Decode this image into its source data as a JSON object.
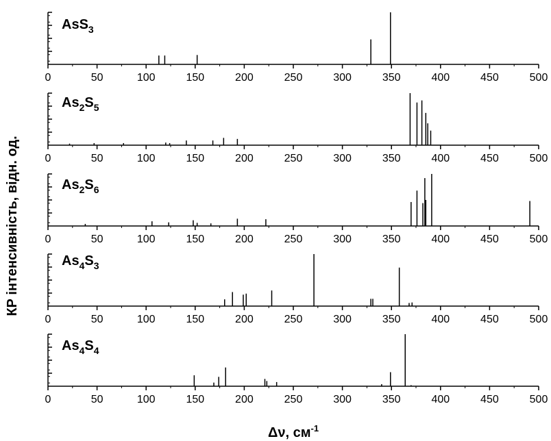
{
  "chart_data": {
    "type": "stem",
    "ylabel": "КР інтенсивність, відн. од.",
    "xlabel_main": "Δν, см",
    "xlabel_sup": "-1",
    "xlim": [
      0,
      500
    ],
    "xticks": [
      "0",
      "50",
      "100",
      "150",
      "200",
      "250",
      "300",
      "350",
      "400",
      "450",
      "500"
    ],
    "colors": {
      "line": "#000000",
      "background": "#ffffff"
    },
    "panels": [
      {
        "label": [
          {
            "t": "AsS"
          },
          {
            "t": "3",
            "sub": true
          }
        ],
        "ymax": 1.0,
        "peaks": [
          {
            "x": 113,
            "y": 0.17
          },
          {
            "x": 119,
            "y": 0.17
          },
          {
            "x": 152,
            "y": 0.18
          },
          {
            "x": 329,
            "y": 0.48
          },
          {
            "x": 349,
            "y": 1.0
          }
        ]
      },
      {
        "label": [
          {
            "t": "As"
          },
          {
            "t": "2",
            "sub": true
          },
          {
            "t": "S"
          },
          {
            "t": "5",
            "sub": true
          }
        ],
        "ymax": 1.0,
        "peaks": [
          {
            "x": 22,
            "y": 0.03
          },
          {
            "x": 47,
            "y": 0.04
          },
          {
            "x": 77,
            "y": 0.04
          },
          {
            "x": 120,
            "y": 0.05
          },
          {
            "x": 124,
            "y": 0.04
          },
          {
            "x": 141,
            "y": 0.09
          },
          {
            "x": 168,
            "y": 0.09
          },
          {
            "x": 179,
            "y": 0.14
          },
          {
            "x": 193,
            "y": 0.12
          },
          {
            "x": 369,
            "y": 1.0
          },
          {
            "x": 376,
            "y": 0.82
          },
          {
            "x": 381,
            "y": 0.86
          },
          {
            "x": 385,
            "y": 0.62
          },
          {
            "x": 387,
            "y": 0.42
          },
          {
            "x": 390,
            "y": 0.28
          }
        ]
      },
      {
        "label": [
          {
            "t": "As"
          },
          {
            "t": "2",
            "sub": true
          },
          {
            "t": "S"
          },
          {
            "t": "6",
            "sub": true
          }
        ],
        "ymax": 1.0,
        "peaks": [
          {
            "x": 38,
            "y": 0.04
          },
          {
            "x": 106,
            "y": 0.09
          },
          {
            "x": 123,
            "y": 0.07
          },
          {
            "x": 148,
            "y": 0.11
          },
          {
            "x": 152,
            "y": 0.06
          },
          {
            "x": 166,
            "y": 0.05
          },
          {
            "x": 193,
            "y": 0.14
          },
          {
            "x": 222,
            "y": 0.13
          },
          {
            "x": 370,
            "y": 0.46
          },
          {
            "x": 376,
            "y": 0.68
          },
          {
            "x": 382,
            "y": 0.44
          },
          {
            "x": 384,
            "y": 0.92
          },
          {
            "x": 385,
            "y": 0.5
          },
          {
            "x": 391,
            "y": 1.0
          },
          {
            "x": 491,
            "y": 0.48
          }
        ]
      },
      {
        "label": [
          {
            "t": "As"
          },
          {
            "t": "4",
            "sub": true
          },
          {
            "t": "S"
          },
          {
            "t": "3",
            "sub": true
          }
        ],
        "ymax": 1.0,
        "peaks": [
          {
            "x": 180,
            "y": 0.13
          },
          {
            "x": 188,
            "y": 0.27
          },
          {
            "x": 199,
            "y": 0.22
          },
          {
            "x": 202,
            "y": 0.24
          },
          {
            "x": 228,
            "y": 0.3
          },
          {
            "x": 271,
            "y": 1.0
          },
          {
            "x": 329,
            "y": 0.14
          },
          {
            "x": 331,
            "y": 0.14
          },
          {
            "x": 358,
            "y": 0.74
          },
          {
            "x": 368,
            "y": 0.06
          },
          {
            "x": 371,
            "y": 0.07
          }
        ]
      },
      {
        "label": [
          {
            "t": "As"
          },
          {
            "t": "4",
            "sub": true
          },
          {
            "t": "S"
          },
          {
            "t": "4",
            "sub": true
          }
        ],
        "ymax": 1.0,
        "peaks": [
          {
            "x": 149,
            "y": 0.21
          },
          {
            "x": 169,
            "y": 0.07
          },
          {
            "x": 174,
            "y": 0.18
          },
          {
            "x": 181,
            "y": 0.36
          },
          {
            "x": 221,
            "y": 0.14
          },
          {
            "x": 223,
            "y": 0.1
          },
          {
            "x": 233,
            "y": 0.08
          },
          {
            "x": 340,
            "y": 0.04
          },
          {
            "x": 349,
            "y": 0.27
          },
          {
            "x": 364,
            "y": 1.0
          },
          {
            "x": 370,
            "y": 0.02
          }
        ]
      }
    ]
  }
}
